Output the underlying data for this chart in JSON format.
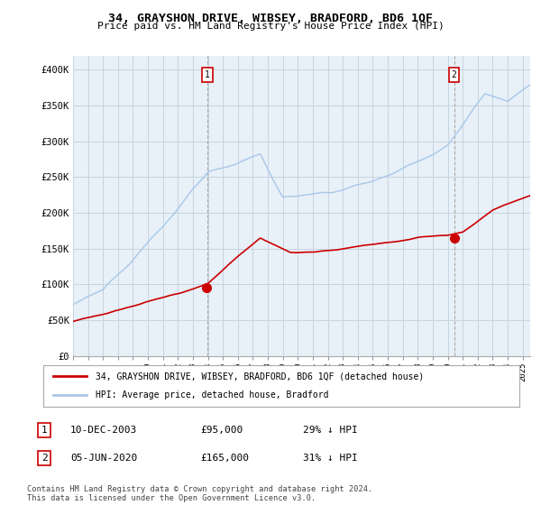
{
  "title": "34, GRAYSHON DRIVE, WIBSEY, BRADFORD, BD6 1QF",
  "subtitle": "Price paid vs. HM Land Registry's House Price Index (HPI)",
  "ylim": [
    0,
    420000
  ],
  "yticks": [
    0,
    50000,
    100000,
    150000,
    200000,
    250000,
    300000,
    350000,
    400000
  ],
  "ytick_labels": [
    "£0",
    "£50K",
    "£100K",
    "£150K",
    "£200K",
    "£250K",
    "£300K",
    "£350K",
    "£400K"
  ],
  "legend_line1": "34, GRAYSHON DRIVE, WIBSEY, BRADFORD, BD6 1QF (detached house)",
  "legend_line2": "HPI: Average price, detached house, Bradford",
  "sale1_label": "1",
  "sale1_date": "10-DEC-2003",
  "sale1_price": "£95,000",
  "sale1_hpi": "29% ↓ HPI",
  "sale2_label": "2",
  "sale2_date": "05-JUN-2020",
  "sale2_price": "£165,000",
  "sale2_hpi": "31% ↓ HPI",
  "footnote": "Contains HM Land Registry data © Crown copyright and database right 2024.\nThis data is licensed under the Open Government Licence v3.0.",
  "hpi_color": "#a8c8e8",
  "price_color": "#cc0000",
  "sale1_year": 2003.95,
  "sale1_value": 95000,
  "sale2_year": 2020.42,
  "sale2_value": 165000,
  "vline_color": "#aaaaaa",
  "background_color": "#ffffff",
  "plot_bg_color": "#e8f0f8",
  "grid_color": "#c8d4e0"
}
